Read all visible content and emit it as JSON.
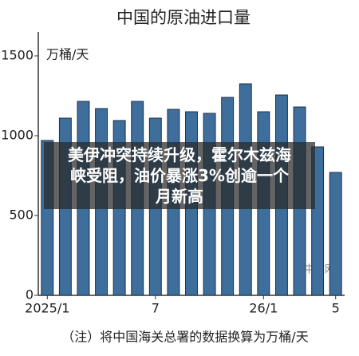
{
  "chart_data": {
    "type": "bar",
    "title": "中国的原油进口量",
    "y_label": "万桶/天",
    "categories": [
      "2025/1",
      null,
      null,
      null,
      null,
      null,
      "7",
      null,
      null,
      null,
      null,
      null,
      "26/1",
      null,
      null,
      null,
      "5"
    ],
    "values": [
      970,
      1110,
      1215,
      1170,
      1095,
      1215,
      1110,
      1165,
      1150,
      1140,
      1240,
      1325,
      1150,
      1255,
      1180,
      930,
      770
    ],
    "color": "#3e6f9c",
    "ylim": [
      0,
      1650
    ],
    "yticks": [
      0,
      500,
      1000,
      1500
    ],
    "note": "（注）将中国海关总署的数据换算为万桶/天"
  },
  "overlay": {
    "headline": "美伊冲突持续升级，霍尔木兹海峡受阻，油价暴涨3%创逾一个月新高",
    "watermark": "中文网"
  }
}
